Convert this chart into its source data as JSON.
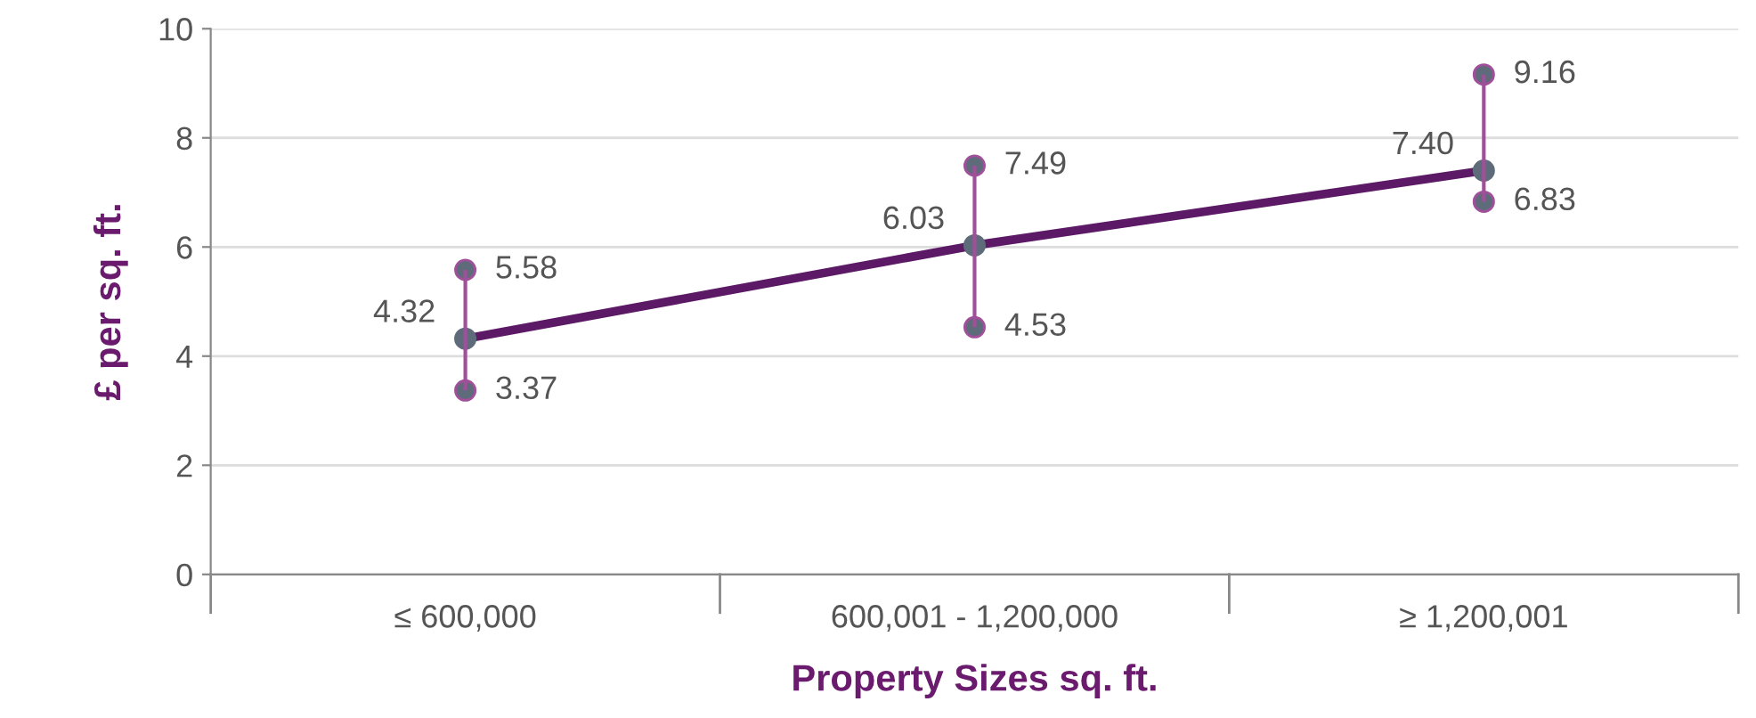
{
  "chart_data": {
    "type": "line",
    "xlabel": "Property Sizes sq. ft.",
    "ylabel": "£ per sq. ft.",
    "categories": [
      "≤ 600,000",
      "600,001 - 1,200,000",
      "≥ 1,200,001"
    ],
    "series": [
      {
        "color": "#5c1a66",
        "values": [
          4.32,
          6.03,
          7.4
        ],
        "value_labels": [
          "4.32",
          "6.03",
          "7.40"
        ]
      },
      {
        "type": "scatter",
        "marker": "circle",
        "color": "#5e6b7a",
        "values": [
          4.32,
          6.03,
          7.4
        ],
        "errors": [
          [
            3.37,
            5.58
          ],
          [
            4.53,
            7.49
          ],
          [
            6.83,
            9.16
          ]
        ]
      }
    ],
    "annotations": [
      {
        "text": "5.58",
        "x": "≤ 600,000",
        "y": 5.58
      },
      {
        "text": "3.37",
        "x": "≤ 600,000",
        "y": 3.37
      },
      {
        "text": "7.49",
        "x": "600,001 - 1,200,000",
        "y": 7.49
      },
      {
        "text": "4.53",
        "x": "600,001 - 1,200,000",
        "y": 4.53
      },
      {
        "text": "9.16",
        "x": "≥ 1,200,001",
        "y": 9.16
      },
      {
        "text": "6.83",
        "x": "≥ 1,200,001",
        "y": 6.83
      }
    ],
    "ylim": [
      0,
      10
    ],
    "yticks": [
      0,
      2,
      4,
      6,
      8,
      10
    ],
    "grid": "y",
    "legend": false
  }
}
